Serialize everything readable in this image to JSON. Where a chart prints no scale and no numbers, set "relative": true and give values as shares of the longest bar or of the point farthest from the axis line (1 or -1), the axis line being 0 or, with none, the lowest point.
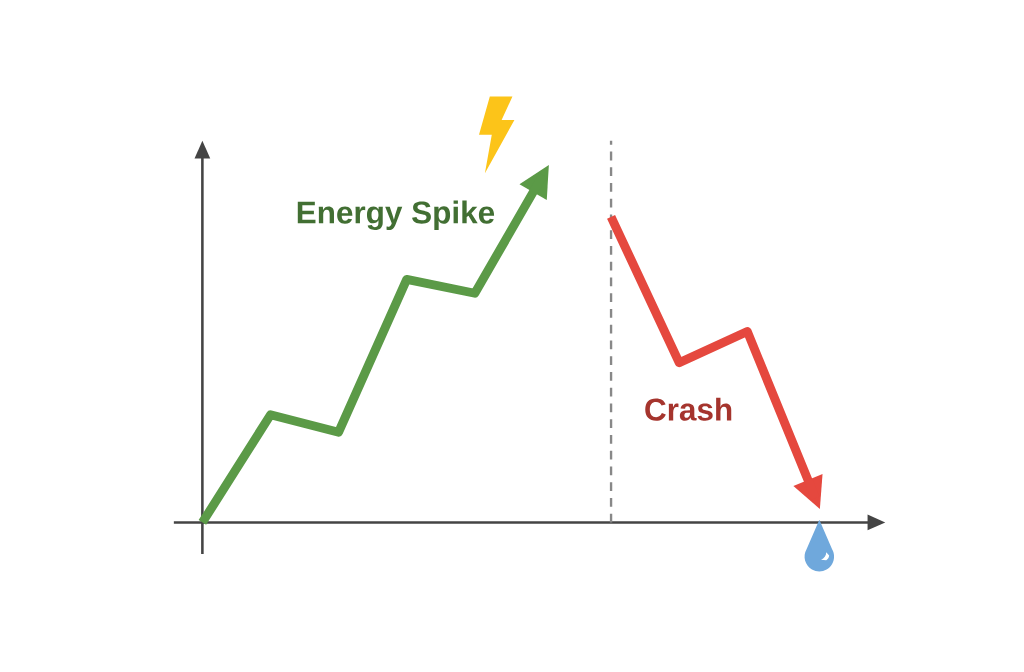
{
  "chart_data": {
    "type": "line",
    "relative": true,
    "categories": [
      null,
      null,
      null,
      null,
      null,
      null,
      null,
      null,
      null,
      null
    ],
    "series": [
      {
        "name": "Energy Spike",
        "color": "#5b9a47",
        "values": [
          0,
          0.31,
          0.26,
          0.7,
          0.66,
          1,
          null,
          null,
          null,
          null
        ]
      },
      {
        "name": "Crash",
        "color": "#e5483e",
        "values": [
          null,
          null,
          null,
          null,
          null,
          null,
          0.88,
          0.46,
          0.55,
          0.07
        ]
      }
    ]
  }
}
